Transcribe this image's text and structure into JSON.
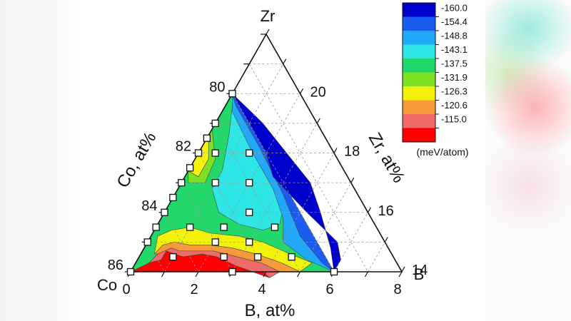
{
  "chart_data": {
    "type": "heatmap",
    "subtype": "ternary-contour",
    "title": "",
    "corners": {
      "top": "Zr",
      "left": "Co",
      "right": "B"
    },
    "axes": {
      "bottom": {
        "label": "B, at%",
        "min": 0,
        "max": 8,
        "ticks": [
          "0",
          "2",
          "4",
          "6",
          "8"
        ]
      },
      "left": {
        "label": "Co, at%",
        "min": 78,
        "max": 86,
        "ticks": [
          "80",
          "82",
          "84",
          "86"
        ]
      },
      "right": {
        "label": "Zr, at%",
        "min": 14,
        "max": 22,
        "ticks": [
          "14",
          "16",
          "18",
          "20"
        ]
      }
    },
    "grid": true,
    "legend": {
      "placement": "top-right",
      "unit": "(meV/atom)",
      "levels": [
        "-160.0",
        "-154.4",
        "-148.8",
        "-143.1",
        "-137.5",
        "-131.9",
        "-126.3",
        "-120.6",
        "-115.0"
      ],
      "colors": [
        "#0000cc",
        "#1a5cf0",
        "#22a8f8",
        "#2ee6e6",
        "#22d86a",
        "#7de020",
        "#f2f20a",
        "#f79a3a",
        "#f06a6a",
        "#ff0000"
      ]
    },
    "points": [
      {
        "co": 80.0,
        "zr": 20.0,
        "b": 0.0
      },
      {
        "co": 81.0,
        "zr": 19.0,
        "b": 0.0
      },
      {
        "co": 81.5,
        "zr": 18.0,
        "b": 0.5
      },
      {
        "co": 82.5,
        "zr": 17.5,
        "b": 0.0
      },
      {
        "co": 82.0,
        "zr": 18.0,
        "b": 0.0
      },
      {
        "co": 83.0,
        "zr": 17.0,
        "b": 0.0
      },
      {
        "co": 83.5,
        "zr": 16.5,
        "b": 0.0
      },
      {
        "co": 84.0,
        "zr": 16.0,
        "b": 0.0
      },
      {
        "co": 84.5,
        "zr": 15.5,
        "b": 0.0
      },
      {
        "co": 85.0,
        "zr": 15.0,
        "b": 0.0
      },
      {
        "co": 86.0,
        "zr": 14.0,
        "b": 0.0
      },
      {
        "co": 81.5,
        "zr": 18.5,
        "b": 0.0
      },
      {
        "co": 80.5,
        "zr": 18.0,
        "b": 1.5
      },
      {
        "co": 81.0,
        "zr": 17.0,
        "b": 2.0
      },
      {
        "co": 82.0,
        "zr": 17.0,
        "b": 1.0
      },
      {
        "co": 81.5,
        "zr": 16.0,
        "b": 2.5
      },
      {
        "co": 82.5,
        "zr": 15.5,
        "b": 2.0
      },
      {
        "co": 83.5,
        "zr": 15.5,
        "b": 1.0
      },
      {
        "co": 84.5,
        "zr": 14.5,
        "b": 1.0
      },
      {
        "co": 83.0,
        "zr": 15.0,
        "b": 2.0
      },
      {
        "co": 83.0,
        "zr": 14.5,
        "b": 2.5
      },
      {
        "co": 82.0,
        "zr": 15.0,
        "b": 3.0
      },
      {
        "co": 82.0,
        "zr": 14.5,
        "b": 3.5
      },
      {
        "co": 81.0,
        "zr": 15.5,
        "b": 3.5
      },
      {
        "co": 83.0,
        "zr": 14.0,
        "b": 3.0
      },
      {
        "co": 80.0,
        "zr": 14.0,
        "b": 6.0
      },
      {
        "co": 81.0,
        "zr": 14.5,
        "b": 4.5
      }
    ],
    "contour_regions": [
      {
        "level": "-115.0",
        "band": 9,
        "path": [
          [
            86.0,
            14.0,
            0.0
          ],
          [
            85.3,
            14.3,
            0.4
          ],
          [
            84.9,
            14.4,
            0.7
          ],
          [
            84.6,
            14.7,
            0.7
          ],
          [
            84.2,
            14.5,
            1.3
          ],
          [
            83.6,
            14.6,
            1.8
          ],
          [
            83.2,
            14.5,
            2.3
          ],
          [
            82.8,
            14.2,
            3.0
          ],
          [
            82.4,
            14.0,
            3.6
          ],
          [
            82.0,
            13.8,
            4.2
          ],
          [
            82.1,
            14.0,
            3.9
          ],
          [
            86.0,
            14.0,
            0.0
          ]
        ]
      },
      {
        "level": "-120.6",
        "band": 8,
        "path": [
          [
            85.3,
            14.3,
            0.4
          ],
          [
            84.9,
            14.6,
            0.5
          ],
          [
            84.4,
            14.8,
            0.8
          ],
          [
            84.2,
            14.7,
            1.1
          ],
          [
            83.8,
            14.7,
            1.5
          ],
          [
            83.2,
            14.7,
            2.1
          ],
          [
            82.6,
            14.5,
            2.9
          ],
          [
            82.0,
            14.3,
            3.7
          ],
          [
            81.6,
            14.0,
            4.4
          ],
          [
            82.0,
            13.8,
            4.2
          ],
          [
            82.4,
            14.0,
            3.6
          ],
          [
            82.8,
            14.2,
            3.0
          ],
          [
            83.2,
            14.5,
            2.3
          ],
          [
            83.6,
            14.6,
            1.8
          ],
          [
            84.2,
            14.5,
            1.3
          ],
          [
            84.6,
            14.7,
            0.7
          ],
          [
            84.9,
            14.4,
            0.7
          ],
          [
            85.3,
            14.3,
            0.4
          ]
        ]
      },
      {
        "level": "-126.3",
        "band": 7,
        "path": [
          [
            85.0,
            14.6,
            0.4
          ],
          [
            84.6,
            14.9,
            0.5
          ],
          [
            84.2,
            15.0,
            0.8
          ],
          [
            83.8,
            14.9,
            1.3
          ],
          [
            83.2,
            14.9,
            1.9
          ],
          [
            82.6,
            14.8,
            2.6
          ],
          [
            82.0,
            14.6,
            3.4
          ],
          [
            81.4,
            14.3,
            4.3
          ],
          [
            81.0,
            14.0,
            5.0
          ],
          [
            81.6,
            14.0,
            4.4
          ],
          [
            82.0,
            14.3,
            3.7
          ],
          [
            82.6,
            14.5,
            2.9
          ],
          [
            83.2,
            14.7,
            2.1
          ],
          [
            83.8,
            14.7,
            1.5
          ],
          [
            84.2,
            14.7,
            1.1
          ],
          [
            84.4,
            14.8,
            0.8
          ],
          [
            84.9,
            14.6,
            0.5
          ],
          [
            85.0,
            14.6,
            0.4
          ]
        ]
      },
      {
        "level": "-131.9",
        "band": 6,
        "path": [
          [
            84.6,
            15.2,
            0.2
          ],
          [
            84.1,
            15.4,
            0.5
          ],
          [
            83.5,
            15.5,
            1.0
          ],
          [
            83.0,
            15.3,
            1.7
          ],
          [
            82.2,
            15.2,
            2.6
          ],
          [
            81.6,
            15.0,
            3.4
          ],
          [
            81.0,
            14.6,
            4.4
          ],
          [
            80.5,
            14.3,
            5.2
          ],
          [
            81.0,
            14.0,
            5.0
          ],
          [
            81.4,
            14.3,
            4.3
          ],
          [
            82.0,
            14.6,
            3.4
          ],
          [
            82.6,
            14.8,
            2.6
          ],
          [
            83.2,
            14.9,
            1.9
          ],
          [
            83.8,
            14.9,
            1.3
          ],
          [
            84.2,
            15.0,
            0.8
          ],
          [
            84.6,
            14.9,
            0.5
          ],
          [
            85.0,
            14.6,
            0.4
          ],
          [
            84.6,
            15.2,
            0.2
          ]
        ]
      }
    ],
    "major_zones": [
      {
        "level": "-160.0",
        "band": 0,
        "path": [
          [
            80.0,
            20.0,
            0.0
          ],
          [
            80.0,
            19.0,
            1.0
          ],
          [
            80.0,
            18.0,
            2.0
          ],
          [
            80.2,
            17.2,
            2.6
          ],
          [
            80.0,
            16.6,
            3.4
          ],
          [
            79.8,
            16.0,
            4.2
          ],
          [
            79.4,
            15.0,
            5.6
          ],
          [
            79.6,
            14.4,
            6.0
          ],
          [
            80.0,
            14.0,
            6.0
          ],
          [
            79.7,
            14.8,
            5.5
          ],
          [
            79.4,
            16.0,
            4.6
          ],
          [
            79.2,
            17.0,
            3.8
          ],
          [
            79.4,
            18.0,
            2.6
          ],
          [
            79.6,
            19.0,
            1.4
          ],
          [
            80.0,
            20.0,
            0.0
          ]
        ]
      }
    ]
  }
}
